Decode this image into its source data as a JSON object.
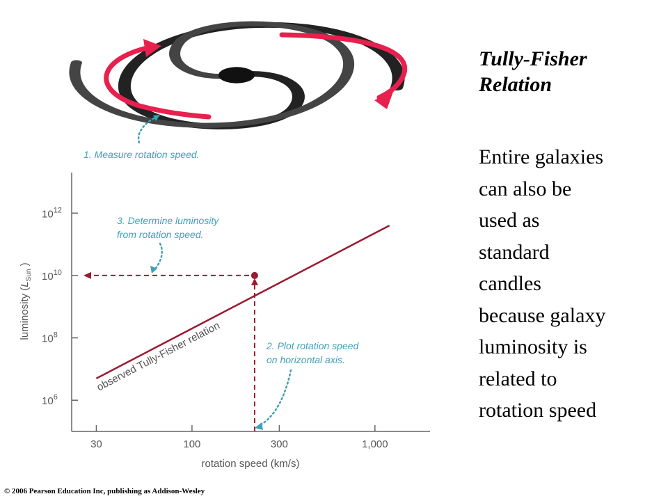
{
  "title_lines": [
    "Tully-Fisher",
    "Relation"
  ],
  "body_lines": [
    "Entire galaxies",
    "can also be",
    "used as",
    "standard",
    "candles",
    "because galaxy",
    "luminosity is",
    "related to",
    "rotation speed"
  ],
  "copyright": "© 2006 Pearson Education Inc, publishing as Addison-Wesley",
  "steps": {
    "step1": "1. Measure rotation speed.",
    "step2_line1": "2. Plot rotation speed",
    "step2_line2": "on horizontal axis.",
    "step3_line1": "3. Determine luminosity",
    "step3_line2": "from rotation speed."
  },
  "colors": {
    "line": "#9b1b30",
    "arrow": "#e8204e",
    "annotation": "#3fa1b8",
    "axis": "#666666"
  },
  "chart_data": {
    "type": "line",
    "title": "",
    "xlabel": "rotation speed (km/s)",
    "ylabel_prefix": "luminosity (",
    "ylabel_symbol": "L",
    "ylabel_sub": "Sun",
    "ylabel_suffix": " )",
    "x_scale": "log",
    "y_scale": "log",
    "xlim": [
      22,
      2000
    ],
    "ylim": [
      100000,
      20000000000000
    ],
    "x_ticks": [
      {
        "value": 30,
        "label": "30"
      },
      {
        "value": 100,
        "label": "100"
      },
      {
        "value": 300,
        "label": "300"
      },
      {
        "value": 1000,
        "label": "1,000"
      }
    ],
    "y_ticks": [
      {
        "value": 1000000,
        "base": "10",
        "exp": "6"
      },
      {
        "value": 100000000,
        "base": "10",
        "exp": "8"
      },
      {
        "value": 10000000000,
        "base": "10",
        "exp": "10"
      },
      {
        "value": 1000000000000,
        "base": "10",
        "exp": "12"
      }
    ],
    "series": [
      {
        "name": "observed Tully-Fisher relation",
        "x": [
          30,
          1200
        ],
        "y": [
          5000000,
          400000000000
        ]
      }
    ],
    "highlight_point": {
      "x": 220,
      "y": 10000000000
    },
    "grid": false
  }
}
